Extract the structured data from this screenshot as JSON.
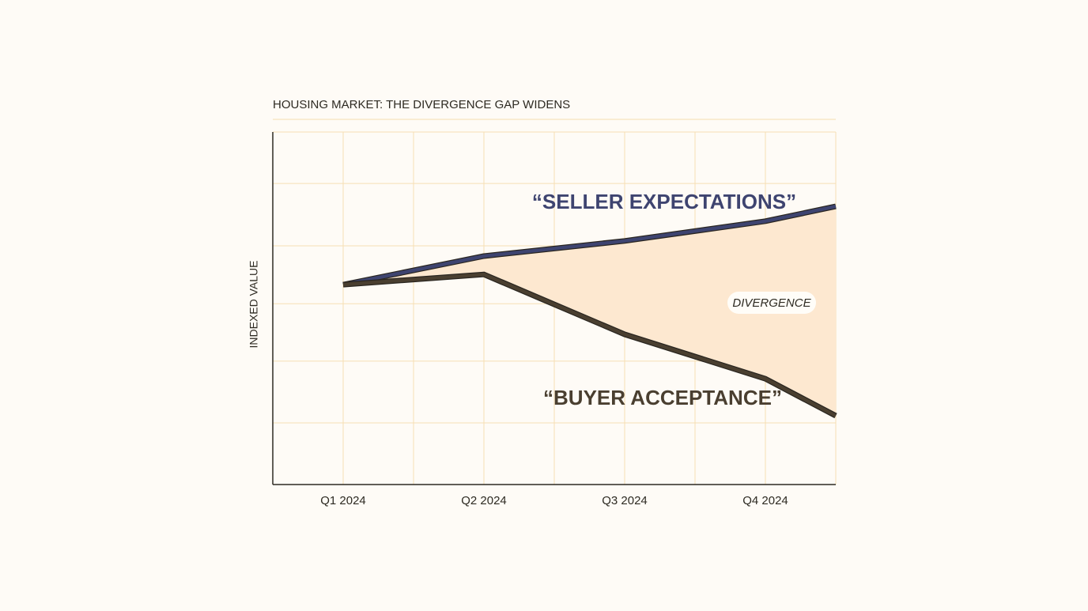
{
  "chart_data": {
    "type": "line",
    "title": "HOUSING MARKET: THE DIVERGENCE GAP WIDENS",
    "y_label": "INDEXED VALUE",
    "x": [
      1,
      2,
      3,
      4,
      4.5
    ],
    "xlim": [
      0.5,
      4.5
    ],
    "xticks": [
      {
        "value": 1,
        "label": "Q1 2024"
      },
      {
        "value": 2,
        "label": "Q2 2024"
      },
      {
        "value": 3,
        "label": "Q3 2024"
      },
      {
        "value": 4,
        "label": "Q4 2024"
      }
    ],
    "ylim": [
      0,
      100
    ],
    "ygrid": [
      17.5,
      35,
      51.3,
      67.7,
      85.4
    ],
    "grid": true,
    "series": [
      {
        "name": "“SELLER EXPECTATIONS”",
        "color": "#3e4470",
        "values": [
          56.7,
          64.8,
          69.1,
          74.7,
          78.9
        ]
      },
      {
        "name": "“BUYER ACCEPTANCE”",
        "color": "#4a3f30",
        "values": [
          56.7,
          59.6,
          42.6,
          30.0,
          19.5
        ]
      }
    ],
    "fill_color": "#fde8d0",
    "fill_label": "DIVERGENCE"
  }
}
